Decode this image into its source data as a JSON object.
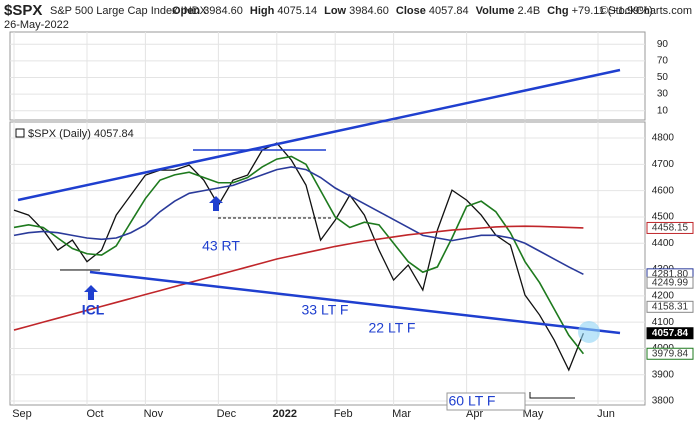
{
  "header": {
    "symbol": "$SPX",
    "name": "S&P 500 Large Cap Index INDX",
    "date": "26-May-2022",
    "stats": [
      {
        "label": "Open",
        "value": "3984.60"
      },
      {
        "label": "High",
        "value": "4075.14"
      },
      {
        "label": "Low",
        "value": "3984.60"
      },
      {
        "label": "Close",
        "value": "4057.84"
      },
      {
        "label": "Volume",
        "value": "2.4B"
      },
      {
        "label": "Chg",
        "value": "+79.11 (+1.99%)"
      }
    ],
    "source": "©StockCharts.com"
  },
  "chart_data": [
    {
      "type": "line",
      "ylim": [
        0,
        100
      ],
      "yticks": [
        10,
        30,
        50,
        70,
        90
      ],
      "series": []
    },
    {
      "type": "line",
      "legend": "$SPX (Daily) 4057.84",
      "categories": [
        "Sep",
        null,
        null,
        null,
        null,
        "Oct",
        null,
        null,
        null,
        "Nov",
        null,
        null,
        null,
        null,
        "Dec",
        null,
        null,
        null,
        "2022",
        null,
        null,
        null,
        "Feb",
        null,
        null,
        null,
        "Mar",
        null,
        null,
        null,
        null,
        "Apr",
        null,
        null,
        null,
        "May",
        null,
        null,
        null,
        null,
        "Jun"
      ],
      "ylim": [
        3785,
        4861
      ],
      "yticks": [
        3800,
        3900,
        4000,
        4100,
        4200,
        4300,
        4400,
        4500,
        4600,
        4700,
        4800
      ],
      "grid": true,
      "series": [
        {
          "name": "$SPX",
          "color": "#111111",
          "values": [
            4526,
            4507,
            4450,
            4374,
            4412,
            4330,
            4374,
            4507,
            4583,
            4659,
            4678,
            4678,
            4697,
            4640,
            4545,
            4640,
            4659,
            4754,
            4781,
            4716,
            4621,
            4412,
            4488,
            4583,
            4507,
            4374,
            4260,
            4317,
            4222,
            4450,
            4602,
            4564,
            4507,
            4431,
            4393,
            4203,
            4127,
            4032,
            3918,
            4057.84,
            null
          ]
        },
        {
          "name": "MA20",
          "color": "#1e7a1e",
          "values": [
            4460,
            4470,
            4460,
            4420,
            4380,
            4360,
            4355,
            4390,
            4480,
            4570,
            4640,
            4660,
            4670,
            4650,
            4630,
            4630,
            4650,
            4690,
            4720,
            4730,
            4700,
            4600,
            4500,
            4460,
            4480,
            4470,
            4400,
            4330,
            4290,
            4310,
            4420,
            4540,
            4560,
            4520,
            4440,
            4330,
            4250,
            4150,
            4050,
            3979.84,
            null
          ]
        },
        {
          "name": "MA50",
          "color": "#2a3a9a",
          "values": [
            4430,
            4440,
            4445,
            4440,
            4430,
            4420,
            4415,
            4420,
            4440,
            4470,
            4520,
            4560,
            4590,
            4600,
            4610,
            4620,
            4640,
            4660,
            4680,
            4690,
            4680,
            4650,
            4610,
            4580,
            4550,
            4520,
            4490,
            4460,
            4430,
            4420,
            4410,
            4420,
            4430,
            4430,
            4420,
            4400,
            4370,
            4340,
            4310,
            4281.8,
            null
          ]
        },
        {
          "name": "MA200",
          "color": "#c0262a",
          "values": [
            4070,
            4085,
            4100,
            4115,
            4130,
            4145,
            4160,
            4175,
            4190,
            4205,
            4220,
            4235,
            4250,
            4265,
            4280,
            4295,
            4310,
            4325,
            4340,
            4352,
            4364,
            4376,
            4388,
            4398,
            4408,
            4416,
            4424,
            4432,
            4438,
            4444,
            4450,
            4454,
            4458,
            4462,
            4464,
            4465,
            4464,
            4462,
            4460,
            4458.15,
            null
          ]
        }
      ],
      "price_labels": [
        {
          "value": 4458.15,
          "label": "4458.15",
          "color": "#c0262a"
        },
        {
          "value": 4281.8,
          "label": "4281.80",
          "color": "#2a3a9a"
        },
        {
          "value": 4249.99,
          "label": "4249.99",
          "color": "#888888"
        },
        {
          "value": 4158.31,
          "label": "4158.31",
          "color": "#888888"
        },
        {
          "value": 4057.84,
          "label": "4057.84",
          "color": "#000000"
        },
        {
          "value": 3979.84,
          "label": "3979.84",
          "color": "#1e7a1e"
        }
      ],
      "annotations": [
        "ICL",
        "43 RT",
        "33 LT F",
        "22 LT F",
        "60 LT F"
      ]
    }
  ]
}
